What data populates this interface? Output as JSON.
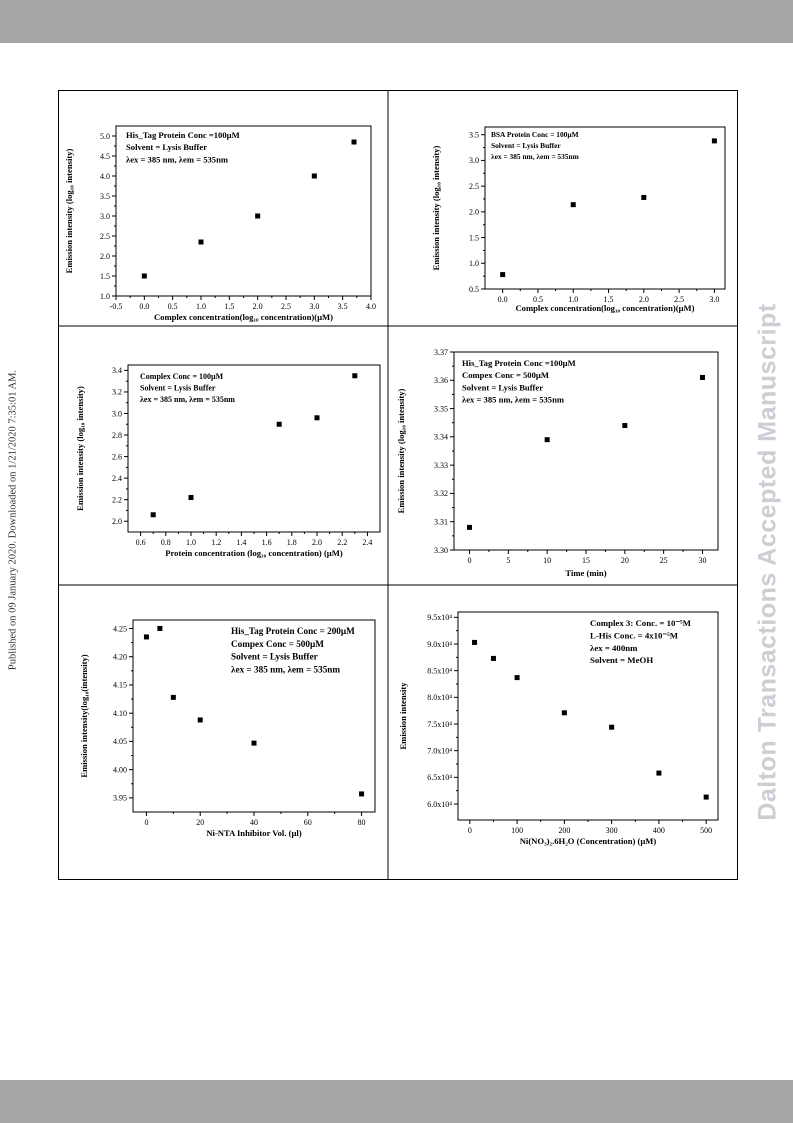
{
  "sidebar_left": "Published on 09 January 2020. Downloaded on 1/21/2020 7:35:01 AM.",
  "sidebar_right": "Dalton Transactions Accepted Manuscript",
  "chart_data": [
    {
      "type": "scatter",
      "xlabel": "Complex concentration(log₁₀ concentration)(µM)",
      "ylabel": "Emission intensity (log₁₀ intensity)",
      "annotations": [
        "His_Tag Protein Conc =100µM",
        "Solvent = Lysis Buffer",
        "λex = 385 nm, λem = 535nm"
      ],
      "xlim": [
        -0.5,
        4.0
      ],
      "ylim": [
        1.0,
        5.25
      ],
      "xticks": [
        -0.5,
        0.0,
        0.5,
        1.0,
        1.5,
        2.0,
        2.5,
        3.0,
        3.5,
        4.0
      ],
      "yticks": [
        1.0,
        1.5,
        2.0,
        2.5,
        3.0,
        3.5,
        4.0,
        4.5,
        5.0
      ],
      "xtick_labels": [
        "-0.5",
        "0.0",
        "0.5",
        "1.0",
        "1.5",
        "2.0",
        "2.5",
        "3.0",
        "3.5",
        "4.0"
      ],
      "ytick_labels": [
        "1.0",
        "1.5",
        "2.0",
        "2.5",
        "3.0",
        "3.5",
        "4.0",
        "4.5",
        "5.0"
      ],
      "x": [
        0.0,
        1.0,
        2.0,
        3.0,
        3.7
      ],
      "y": [
        1.5,
        2.35,
        3.0,
        4.0,
        4.85
      ]
    },
    {
      "type": "scatter",
      "xlabel": "Complex concentration(log₁₀ concentration)(µM)",
      "ylabel": "Emission intensity (log₁₀ intensity)",
      "annotations": [
        "BSA Protein Conc = 100µM",
        "Solvent = Lysis Buffer",
        "λex = 385 nm, λem = 535nm"
      ],
      "xlim": [
        -0.25,
        3.15
      ],
      "ylim": [
        0.5,
        3.65
      ],
      "xticks": [
        0.0,
        0.5,
        1.0,
        1.5,
        2.0,
        2.5,
        3.0
      ],
      "yticks": [
        0.5,
        1.0,
        1.5,
        2.0,
        2.5,
        3.0,
        3.5
      ],
      "xtick_labels": [
        "0.0",
        "0.5",
        "1.0",
        "1.5",
        "2.0",
        "2.5",
        "3.0"
      ],
      "ytick_labels": [
        "0.5",
        "1.0",
        "1.5",
        "2.0",
        "2.5",
        "3.0",
        "3.5"
      ],
      "x": [
        0.0,
        1.0,
        2.0,
        3.0
      ],
      "y": [
        0.78,
        2.14,
        2.28,
        3.38
      ]
    },
    {
      "type": "scatter",
      "xlabel": "Protein concentration (log₁₀ concentration) (µM)",
      "ylabel": "Emission intensity (log₁₀ intensity)",
      "annotations": [
        "Complex Conc = 100µM",
        "Solvent = Lysis Buffer",
        "λex = 385 nm, λem = 535nm"
      ],
      "xlim": [
        0.5,
        2.5
      ],
      "ylim": [
        1.9,
        3.45
      ],
      "xticks": [
        0.6,
        0.8,
        1.0,
        1.2,
        1.4,
        1.6,
        1.8,
        2.0,
        2.2,
        2.4
      ],
      "yticks": [
        2.0,
        2.2,
        2.4,
        2.6,
        2.8,
        3.0,
        3.2,
        3.4
      ],
      "xtick_labels": [
        "0.6",
        "0.8",
        "1.0",
        "1.2",
        "1.4",
        "1.6",
        "1.8",
        "2.0",
        "2.2",
        "2.4"
      ],
      "ytick_labels": [
        "2.0",
        "2.2",
        "2.4",
        "2.6",
        "2.8",
        "3.0",
        "3.2",
        "3.4"
      ],
      "x": [
        0.7,
        1.0,
        1.7,
        2.0,
        2.3
      ],
      "y": [
        2.06,
        2.22,
        2.9,
        2.96,
        3.35
      ]
    },
    {
      "type": "scatter",
      "xlabel": "Time (min)",
      "ylabel": "Emission intensity (log₁₀ intensity)",
      "annotations": [
        "His_Tag Protein Conc =100µM",
        "Compex Conc = 500µM",
        "Solvent = Lysis Buffer",
        "λex = 385 nm, λem = 535nm"
      ],
      "xlim": [
        -2,
        32
      ],
      "ylim": [
        3.3,
        3.37
      ],
      "xticks": [
        0,
        5,
        10,
        15,
        20,
        25,
        30
      ],
      "yticks": [
        3.3,
        3.31,
        3.32,
        3.33,
        3.34,
        3.35,
        3.36,
        3.37
      ],
      "xtick_labels": [
        "0",
        "5",
        "10",
        "15",
        "20",
        "25",
        "30"
      ],
      "ytick_labels": [
        "3.30",
        "3.31",
        "3.32",
        "3.33",
        "3.34",
        "3.35",
        "3.36",
        "3.37"
      ],
      "x": [
        0,
        10,
        20,
        30
      ],
      "y": [
        3.308,
        3.339,
        3.344,
        3.361
      ]
    },
    {
      "type": "scatter",
      "xlabel": "Ni-NTA Inhibitor Vol. (µl)",
      "ylabel": "Emission intensity(log₁₀(intensity)",
      "annotations": [
        "His_Tag Protein Conc = 200µM",
        "Compex Conc = 500µM",
        "Solvent = Lysis Buffer",
        "λex = 385 nm, λem = 535nm"
      ],
      "xlim": [
        -5,
        85
      ],
      "ylim": [
        3.925,
        4.265
      ],
      "xticks": [
        0,
        20,
        40,
        60,
        80
      ],
      "yticks": [
        3.95,
        4.0,
        4.05,
        4.1,
        4.15,
        4.2,
        4.25
      ],
      "xtick_labels": [
        "0",
        "20",
        "40",
        "60",
        "80"
      ],
      "ytick_labels": [
        "3.95",
        "4.00",
        "4.05",
        "4.10",
        "4.15",
        "4.20",
        "4.25"
      ],
      "x": [
        0,
        5,
        10,
        20,
        40,
        80
      ],
      "y": [
        4.235,
        4.25,
        4.128,
        4.088,
        4.047,
        3.957
      ]
    },
    {
      "type": "scatter",
      "xlabel": "Ni(NO₃)₂.6H₂O (Concentration) (µM)",
      "ylabel": "Emission intensity",
      "annotations": [
        "Complex 3: Conc. = 10⁻⁵M",
        "L-His Conc. = 4x10⁻⁵M",
        "λex = 400nm",
        "Solvent = MeOH"
      ],
      "xlim": [
        -25,
        525
      ],
      "ylim": [
        57000,
        96000
      ],
      "xticks": [
        0,
        100,
        200,
        300,
        400,
        500
      ],
      "yticks": [
        60000,
        65000,
        70000,
        75000,
        80000,
        85000,
        90000,
        95000
      ],
      "xtick_labels": [
        "0",
        "100",
        "200",
        "300",
        "400",
        "500"
      ],
      "ytick_labels": [
        "6.0x10⁴",
        "6.5x10⁴",
        "7.0x10⁴",
        "7.5x10⁴",
        "8.0x10⁴",
        "8.5x10⁴",
        "9.0x10⁴",
        "9.5x10⁴"
      ],
      "x": [
        10,
        50,
        100,
        200,
        300,
        400,
        500
      ],
      "y": [
        90300,
        87300,
        83700,
        77100,
        74400,
        65800,
        61300
      ]
    }
  ]
}
